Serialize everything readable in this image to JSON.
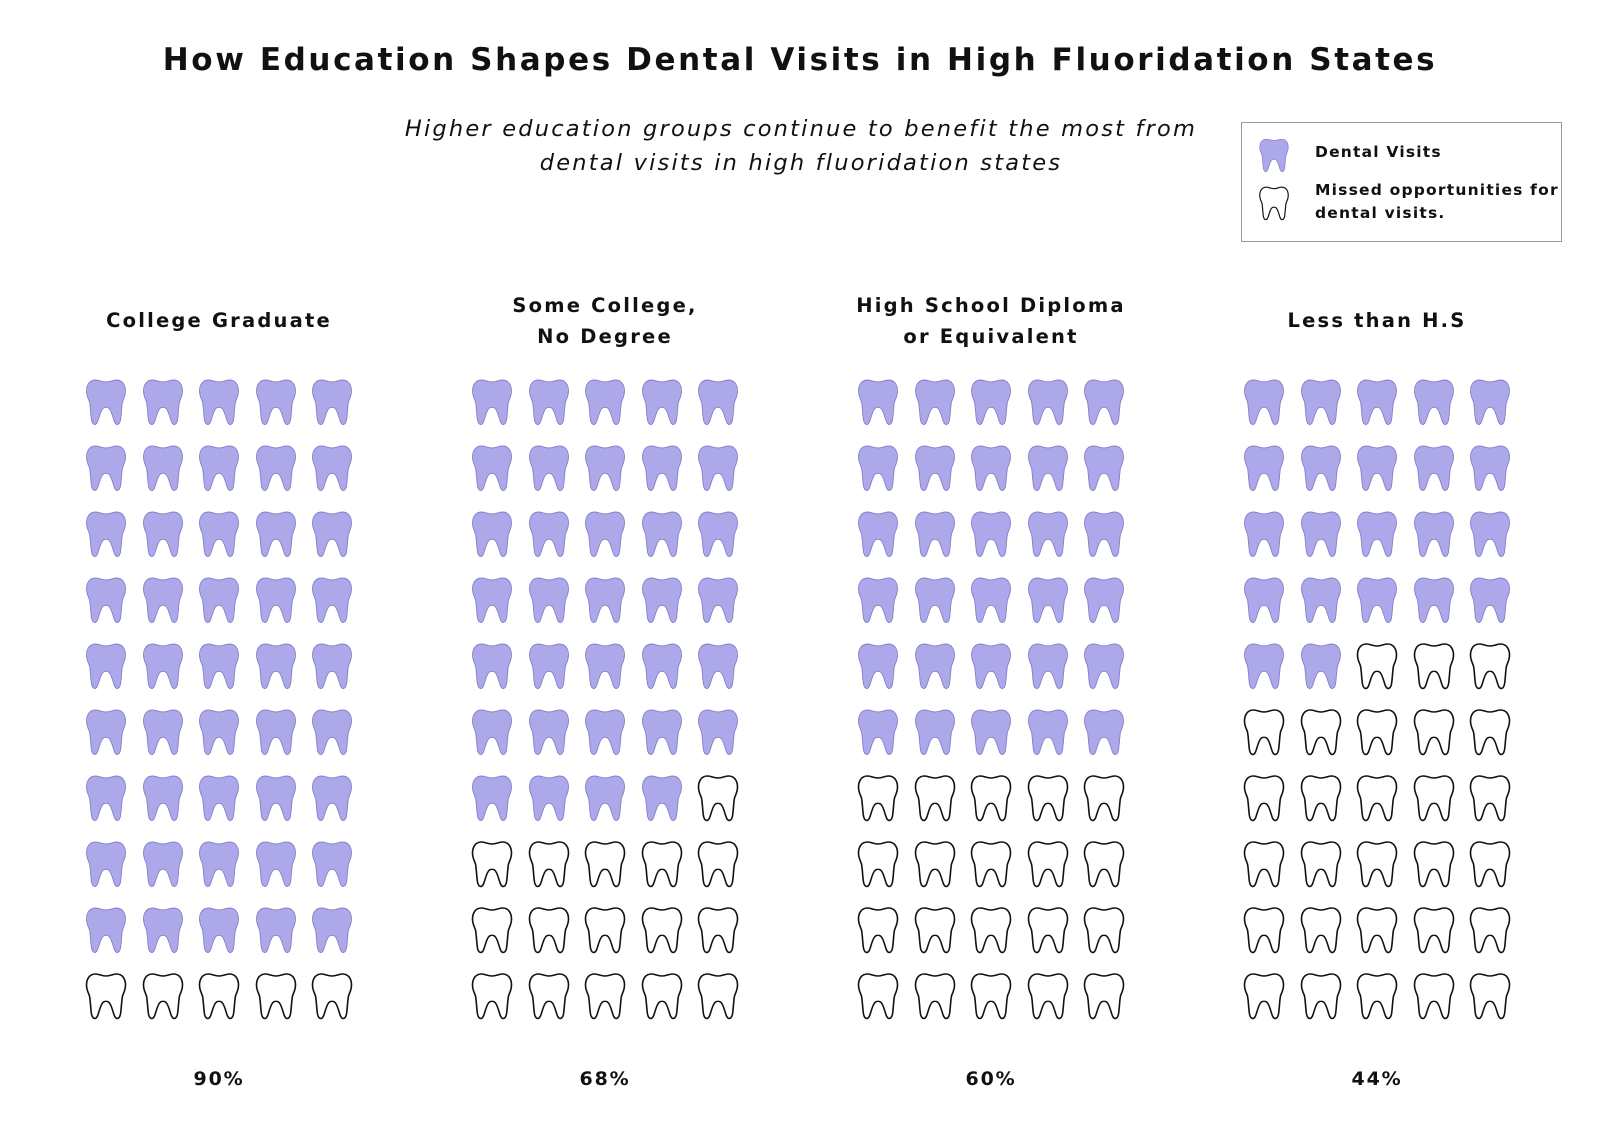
{
  "title": {
    "part1": "How Education Shapes Dental Visits in ",
    "bold": "High Fluoridation",
    "part2": " States"
  },
  "subtitle": {
    "line1": "Higher education groups continue to benefit the most from",
    "line2": "dental visits in high fluoridation states"
  },
  "legend": {
    "filled_label": "Dental Visits",
    "outline_label_line1": "Missed opportunities for",
    "outline_label_line2": "dental visits."
  },
  "colors": {
    "filled": "#aca8ea",
    "filled_stroke": "#8580c8",
    "outline_stroke": "#111111",
    "outline_fill": "#ffffff"
  },
  "chart_data": {
    "type": "waffle",
    "icon": "tooth-icon",
    "units_per_group": 50,
    "columns": 5,
    "groups": [
      {
        "label_line1": "College Graduate",
        "label_line2": "",
        "filled": 45,
        "value_label": "90%"
      },
      {
        "label_line1": "Some College,",
        "label_line2": "No Degree",
        "filled": 34,
        "value_label": "68%"
      },
      {
        "label_line1": "High School Diploma",
        "label_line2": "or Equivalent",
        "filled": 30,
        "value_label": "60%"
      },
      {
        "label_line1": "Less than H.S",
        "label_line2": "",
        "filled": 22,
        "value_label": "44%"
      }
    ]
  }
}
